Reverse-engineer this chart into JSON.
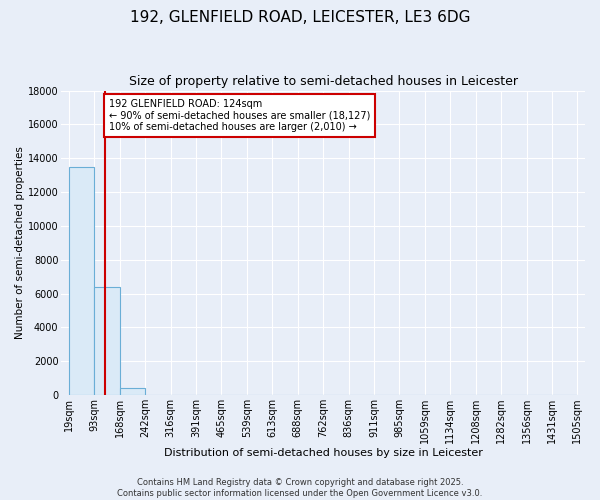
{
  "title": "192, GLENFIELD ROAD, LEICESTER, LE3 6DG",
  "subtitle": "Size of property relative to semi-detached houses in Leicester",
  "xlabel": "Distribution of semi-detached houses by size in Leicester",
  "ylabel": "Number of semi-detached properties",
  "bin_labels": [
    "19sqm",
    "93sqm",
    "168sqm",
    "242sqm",
    "316sqm",
    "391sqm",
    "465sqm",
    "539sqm",
    "613sqm",
    "688sqm",
    "762sqm",
    "836sqm",
    "911sqm",
    "985sqm",
    "1059sqm",
    "1134sqm",
    "1208sqm",
    "1282sqm",
    "1356sqm",
    "1431sqm",
    "1505sqm"
  ],
  "bin_edges": [
    19,
    93,
    168,
    242,
    316,
    391,
    465,
    539,
    613,
    688,
    762,
    836,
    911,
    985,
    1059,
    1134,
    1208,
    1282,
    1356,
    1431,
    1505
  ],
  "bar_heights": [
    13500,
    6400,
    400,
    0,
    0,
    0,
    0,
    0,
    0,
    0,
    0,
    0,
    0,
    0,
    0,
    0,
    0,
    0,
    0,
    0
  ],
  "bar_color": "#daeaf7",
  "bar_edge_color": "#6aaed6",
  "vline_x": 124,
  "vline_color": "#cc0000",
  "annotation_title": "192 GLENFIELD ROAD: 124sqm",
  "annotation_line2": "← 90% of semi-detached houses are smaller (18,127)",
  "annotation_line3": "10% of semi-detached houses are larger (2,010) →",
  "annotation_box_color": "#cc0000",
  "ylim": [
    0,
    18000
  ],
  "yticks": [
    0,
    2000,
    4000,
    6000,
    8000,
    10000,
    12000,
    14000,
    16000,
    18000
  ],
  "footer_line1": "Contains HM Land Registry data © Crown copyright and database right 2025.",
  "footer_line2": "Contains public sector information licensed under the Open Government Licence v3.0.",
  "bg_color": "#e8eef8",
  "plot_bg_color": "#e8eef8",
  "grid_color": "#ffffff",
  "title_fontsize": 11,
  "subtitle_fontsize": 9,
  "ylabel_fontsize": 7.5,
  "xlabel_fontsize": 8,
  "tick_fontsize": 7,
  "footer_fontsize": 6
}
